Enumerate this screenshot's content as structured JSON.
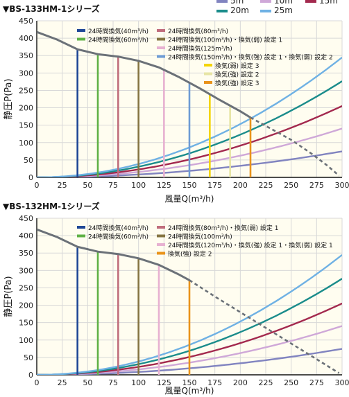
{
  "duct_legend": [
    {
      "label": "5m",
      "color": "#8184c0"
    },
    {
      "label": "10m",
      "color": "#cfa8d8"
    },
    {
      "label": "15m",
      "color": "#a3294e"
    },
    {
      "label": "20m",
      "color": "#1a8c8b"
    },
    {
      "label": "25m",
      "color": "#6fb1e4"
    }
  ],
  "colors": {
    "plot_bg": "#fffdf0",
    "grid": "#d8d8d8",
    "axis": "#111111",
    "pq_curve": "#6b7178"
  },
  "chart_data": [
    {
      "type": "line",
      "title": "▼BS-133HM-1シリーズ",
      "xlabel": "風量Q(m³/h)",
      "ylabel": "静圧P(Pa)",
      "xlim": [
        0,
        300
      ],
      "ylim": [
        0,
        450
      ],
      "xticks": [
        "0",
        "25",
        "50",
        "75",
        "100",
        "125",
        "150",
        "175",
        "200",
        "225",
        "250",
        "275",
        "300"
      ],
      "yticks": [
        "0",
        "50",
        "100",
        "150",
        "200",
        "250",
        "300",
        "350",
        "400",
        "450"
      ],
      "grid": true,
      "pq_curve": {
        "solid": [
          [
            0,
            418
          ],
          [
            20,
            396
          ],
          [
            40,
            368
          ],
          [
            60,
            354
          ],
          [
            80,
            347
          ],
          [
            100,
            335
          ],
          [
            120,
            316
          ],
          [
            140,
            288
          ],
          [
            160,
            256
          ],
          [
            180,
            222
          ],
          [
            200,
            190
          ],
          [
            210,
            172
          ]
        ],
        "dashed": [
          [
            210,
            172
          ],
          [
            230,
            140
          ],
          [
            250,
            108
          ],
          [
            270,
            68
          ],
          [
            285,
            35
          ],
          [
            297,
            5
          ]
        ]
      },
      "duct_series": [
        {
          "name": "5m",
          "color": "#8184c0",
          "k": 0.00083
        },
        {
          "name": "10m",
          "color": "#cfa8d8",
          "k": 0.00156
        },
        {
          "name": "15m",
          "color": "#a3294e",
          "k": 0.00228
        },
        {
          "name": "20m",
          "color": "#1a8c8b",
          "k": 0.00307
        },
        {
          "name": "25m",
          "color": "#6fb1e4",
          "k": 0.00383
        }
      ],
      "operating_points": [
        {
          "x": 40,
          "y": 368,
          "color": "#1f4796"
        },
        {
          "x": 60,
          "y": 354,
          "color": "#5fb145"
        },
        {
          "x": 80,
          "y": 347,
          "color": "#c06d7c"
        },
        {
          "x": 100,
          "y": 335,
          "color": "#857542"
        },
        {
          "x": 125,
          "y": 308,
          "color": "#e7b1d1"
        },
        {
          "x": 150,
          "y": 272,
          "color": "#6d9bd4"
        },
        {
          "x": 170,
          "y": 238,
          "color": "#f4d400"
        },
        {
          "x": 190,
          "y": 207,
          "color": "#e7e5a5"
        },
        {
          "x": 210,
          "y": 172,
          "color": "#e9931a"
        }
      ],
      "legend": [
        {
          "label": "24時間換気(40m³/h)",
          "color": "#1f4796"
        },
        {
          "label": "24時間換気(80m³/h)",
          "color": "#c06d7c"
        },
        {
          "label": "24時間換気(60m³/h)",
          "color": "#5fb145"
        },
        {
          "label": "24時間換気(100m³/h)・換気(弱) 設定 1",
          "color": "#857542"
        },
        {
          "label": "24時間換気(125m³/h)",
          "color": "#e7b1d1"
        },
        {
          "label": "24時間換気(150m³/h)・換気(強) 設定 1・換気(弱) 設定 2",
          "color": "#6d9bd4"
        },
        {
          "label": "換気(弱) 設定 3",
          "color": "#f4d400"
        },
        {
          "label": "換気(強) 設定 2",
          "color": "#e7e5a5"
        },
        {
          "label": "換気(強) 設定 3",
          "color": "#e9931a"
        }
      ]
    },
    {
      "type": "line",
      "title": "▼BS-132HM-1シリーズ",
      "xlabel": "風量Q(m³/h)",
      "ylabel": "静圧P(Pa)",
      "xlim": [
        0,
        300
      ],
      "ylim": [
        0,
        450
      ],
      "xticks": [
        "0",
        "25",
        "50",
        "75",
        "100",
        "125",
        "150",
        "175",
        "200",
        "225",
        "250",
        "275",
        "300"
      ],
      "yticks": [
        "0",
        "50",
        "100",
        "150",
        "200",
        "250",
        "300",
        "350",
        "400",
        "450"
      ],
      "grid": true,
      "pq_curve": {
        "solid": [
          [
            0,
            418
          ],
          [
            20,
            396
          ],
          [
            40,
            368
          ],
          [
            60,
            354
          ],
          [
            80,
            347
          ],
          [
            100,
            335
          ],
          [
            120,
            316
          ],
          [
            140,
            288
          ],
          [
            150,
            272
          ]
        ],
        "dashed": [
          [
            150,
            272
          ],
          [
            175,
            225
          ],
          [
            200,
            180
          ],
          [
            225,
            135
          ],
          [
            250,
            90
          ],
          [
            275,
            45
          ],
          [
            297,
            5
          ]
        ]
      },
      "duct_series": [
        {
          "name": "5m",
          "color": "#8184c0",
          "k": 0.00083
        },
        {
          "name": "10m",
          "color": "#cfa8d8",
          "k": 0.00156
        },
        {
          "name": "15m",
          "color": "#a3294e",
          "k": 0.00228
        },
        {
          "name": "20m",
          "color": "#1a8c8b",
          "k": 0.00307
        },
        {
          "name": "25m",
          "color": "#6fb1e4",
          "k": 0.00383
        }
      ],
      "operating_points": [
        {
          "x": 40,
          "y": 368,
          "color": "#1f4796"
        },
        {
          "x": 60,
          "y": 354,
          "color": "#5fb145"
        },
        {
          "x": 80,
          "y": 347,
          "color": "#c06d7c"
        },
        {
          "x": 100,
          "y": 335,
          "color": "#857542"
        },
        {
          "x": 120,
          "y": 316,
          "color": "#e7b1d1"
        },
        {
          "x": 150,
          "y": 272,
          "color": "#e9931a"
        }
      ],
      "legend": [
        {
          "label": "24時間換気(40m³/h)",
          "color": "#1f4796"
        },
        {
          "label": "24時間換気(80m³/h)・換気(弱) 設定 1",
          "color": "#c06d7c"
        },
        {
          "label": "24時間換気(60m³/h)",
          "color": "#5fb145"
        },
        {
          "label": "24時間換気(100m³/h)",
          "color": "#857542"
        },
        {
          "label": "24時間換気(120m³/h)・換気(強) 設定 1・換気(弱) 設定 1",
          "color": "#e7b1d1"
        },
        {
          "label": "換気(強) 設定 2",
          "color": "#e9931a"
        }
      ]
    }
  ]
}
